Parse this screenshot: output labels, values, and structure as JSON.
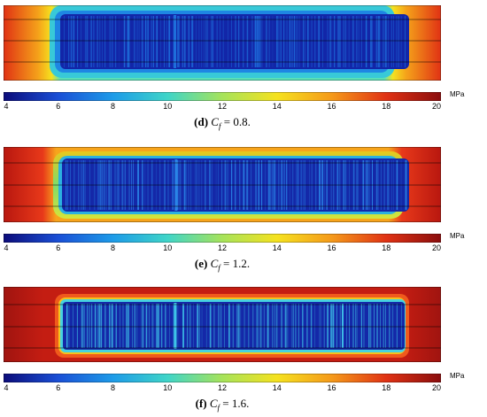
{
  "colorbar": {
    "unit": "MPa",
    "min": 4,
    "max": 20,
    "ticks": [
      "4",
      "6",
      "8",
      "10",
      "12",
      "14",
      "16",
      "18",
      "20"
    ],
    "colors": [
      "#0c0c7a",
      "#1a4fd6",
      "#1d9be8",
      "#3fd5c8",
      "#a6e35a",
      "#f5e21f",
      "#f59a1a",
      "#e03214",
      "#8a0d0d"
    ]
  },
  "panels": [
    {
      "id": "d",
      "caption_label": "(d)",
      "caption_var": "C",
      "caption_sub": "f",
      "caption_rest": " = 0.8.",
      "outer_value_MPa": 19,
      "halo_value_MPa": 11,
      "core_value_MPa": 5
    },
    {
      "id": "e",
      "caption_label": "(e)",
      "caption_var": "C",
      "caption_sub": "f",
      "caption_rest": " = 1.2.",
      "outer_value_MPa": 19.5,
      "halo_value_MPa": 14,
      "core_value_MPa": 5
    },
    {
      "id": "f",
      "caption_label": "(f)",
      "caption_var": "C",
      "caption_sub": "f",
      "caption_rest": " = 1.6.",
      "outer_value_MPa": 20,
      "halo_value_MPa": 18,
      "core_value_MPa": 5
    }
  ]
}
